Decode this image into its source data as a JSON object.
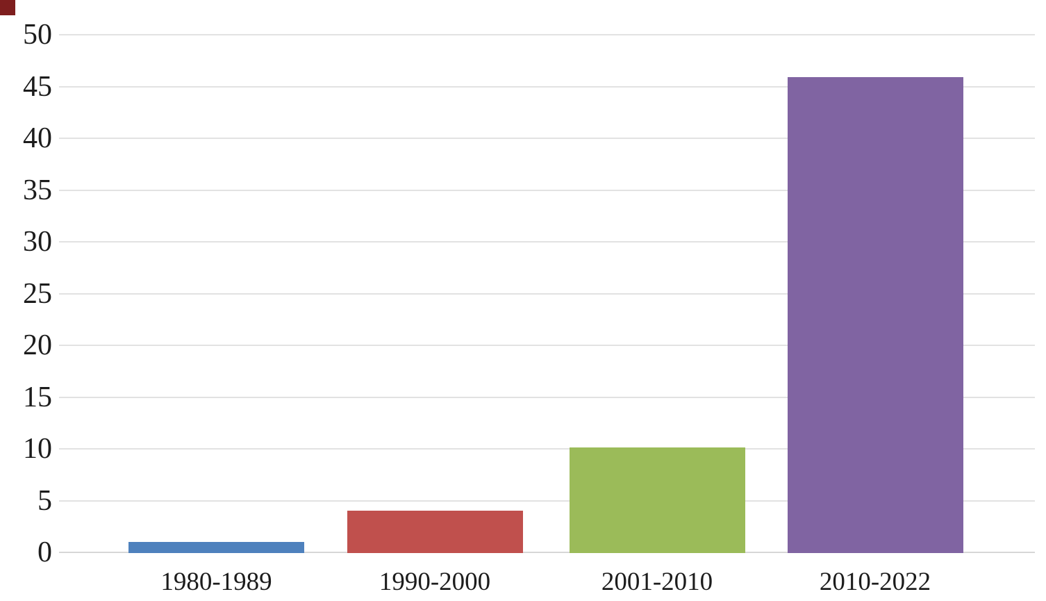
{
  "chart_data": {
    "type": "bar",
    "title": "",
    "xlabel": "",
    "ylabel": "",
    "categories": [
      "1980-1989",
      "1990-2000",
      "2001-2010",
      "2010-2022"
    ],
    "values": [
      1.1,
      4.1,
      10.2,
      46
    ],
    "bar_colors": [
      "#4E81BD",
      "#C0504D",
      "#9BBB59",
      "#8064A2"
    ],
    "ylim": [
      0,
      50
    ],
    "ytick_step": 5,
    "ytick_labels": [
      "0",
      "5",
      "10",
      "15",
      "20",
      "25",
      "30",
      "35",
      "40",
      "45",
      "50"
    ],
    "grid": "horizontal gridlines at every y tick, no vertical axis line",
    "gridline_color": "#E2E2E2",
    "baseline_color": "#D6D6D6",
    "text_color": "#1C1C1C",
    "background_color": "#FFFFFF",
    "legend": "none"
  },
  "decorations": {
    "corner_marker_color": "#7E1E1E"
  }
}
